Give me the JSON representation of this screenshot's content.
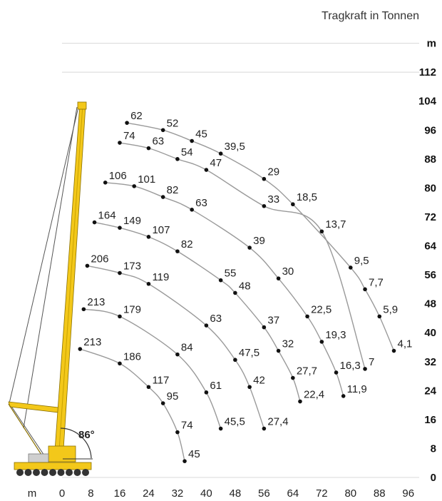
{
  "header": {
    "title": "Tragkraft in Tonnen"
  },
  "chart_data": {
    "type": "scatter",
    "title": "Tragkraft in Tonnen",
    "xlabel": "m",
    "ylabel": "m",
    "x_ticks": [
      0,
      8,
      16,
      24,
      32,
      40,
      48,
      56,
      64,
      72,
      80,
      88,
      96
    ],
    "y_ticks": [
      0,
      8,
      16,
      24,
      32,
      40,
      48,
      56,
      64,
      72,
      80,
      88,
      96,
      104,
      112
    ],
    "xlim": [
      0,
      100
    ],
    "ylim": [
      0,
      120
    ],
    "boom_angle_label": "86°",
    "colors": {
      "crane": "#f3c81a",
      "arc": "#9a9a9a",
      "point": "#111111"
    },
    "series": [
      {
        "points": [
          {
            "x": 5,
            "y": 35.5,
            "label": "213"
          },
          {
            "x": 16,
            "y": 31.5,
            "label": "186"
          },
          {
            "x": 24,
            "y": 25,
            "label": "117"
          },
          {
            "x": 28,
            "y": 20.5,
            "label": "95"
          },
          {
            "x": 32,
            "y": 12.5,
            "label": "74"
          },
          {
            "x": 34,
            "y": 4.5,
            "label": "45"
          }
        ]
      },
      {
        "points": [
          {
            "x": 6,
            "y": 46.5,
            "label": "213"
          },
          {
            "x": 16,
            "y": 44.5,
            "label": "179"
          },
          {
            "x": 32,
            "y": 34,
            "label": "84"
          },
          {
            "x": 40,
            "y": 23.5,
            "label": "61"
          },
          {
            "x": 44,
            "y": 13.5,
            "label": "45,5"
          }
        ]
      },
      {
        "points": [
          {
            "x": 7,
            "y": 58.5,
            "label": "206"
          },
          {
            "x": 16,
            "y": 56.5,
            "label": "173"
          },
          {
            "x": 24,
            "y": 53.5,
            "label": "119"
          },
          {
            "x": 40,
            "y": 42,
            "label": "63"
          },
          {
            "x": 48,
            "y": 32.5,
            "label": "47,5"
          },
          {
            "x": 52,
            "y": 25,
            "label": "42"
          },
          {
            "x": 56,
            "y": 13.5,
            "label": "27,4"
          }
        ]
      },
      {
        "points": [
          {
            "x": 9,
            "y": 70.5,
            "label": "164"
          },
          {
            "x": 16,
            "y": 69,
            "label": "149"
          },
          {
            "x": 24,
            "y": 66.5,
            "label": "107"
          },
          {
            "x": 32,
            "y": 62.5,
            "label": "82"
          },
          {
            "x": 44,
            "y": 54.5,
            "label": "55"
          },
          {
            "x": 48,
            "y": 51,
            "label": "48"
          },
          {
            "x": 56,
            "y": 41.5,
            "label": "37"
          },
          {
            "x": 60,
            "y": 35,
            "label": "32"
          },
          {
            "x": 64,
            "y": 27.5,
            "label": "27,7"
          },
          {
            "x": 66,
            "y": 21,
            "label": "22,4"
          }
        ]
      },
      {
        "points": [
          {
            "x": 12,
            "y": 81.5,
            "label": "106"
          },
          {
            "x": 20,
            "y": 80.5,
            "label": "101"
          },
          {
            "x": 28,
            "y": 77.5,
            "label": "82"
          },
          {
            "x": 36,
            "y": 74,
            "label": "63"
          },
          {
            "x": 52,
            "y": 63.5,
            "label": "39"
          },
          {
            "x": 60,
            "y": 55,
            "label": "30"
          },
          {
            "x": 68,
            "y": 44.5,
            "label": "22,5"
          },
          {
            "x": 72,
            "y": 37.5,
            "label": "19,3"
          },
          {
            "x": 76,
            "y": 29,
            "label": "16,3"
          },
          {
            "x": 78,
            "y": 22.5,
            "label": "11,9"
          }
        ]
      },
      {
        "points": [
          {
            "x": 16,
            "y": 92.5,
            "label": "74"
          },
          {
            "x": 24,
            "y": 91,
            "label": "63"
          },
          {
            "x": 32,
            "y": 88,
            "label": "54"
          },
          {
            "x": 40,
            "y": 85,
            "label": "47"
          },
          {
            "x": 56,
            "y": 75,
            "label": "33"
          },
          {
            "x": 72,
            "y": 68,
            "label": "13,7"
          },
          {
            "x": 84,
            "y": 30,
            "label": "7"
          }
        ]
      },
      {
        "points": [
          {
            "x": 18,
            "y": 98,
            "label": "62"
          },
          {
            "x": 28,
            "y": 96,
            "label": "52"
          },
          {
            "x": 36,
            "y": 93,
            "label": "45"
          },
          {
            "x": 44,
            "y": 89.5,
            "label": "39,5"
          },
          {
            "x": 56,
            "y": 82.5,
            "label": "29"
          },
          {
            "x": 64,
            "y": 75.5,
            "label": "18,5"
          },
          {
            "x": 80,
            "y": 58,
            "label": "9,5"
          },
          {
            "x": 84,
            "y": 52,
            "label": "7,7"
          },
          {
            "x": 88,
            "y": 44.5,
            "label": "5,9"
          },
          {
            "x": 92,
            "y": 35,
            "label": "4,1"
          }
        ]
      }
    ]
  }
}
